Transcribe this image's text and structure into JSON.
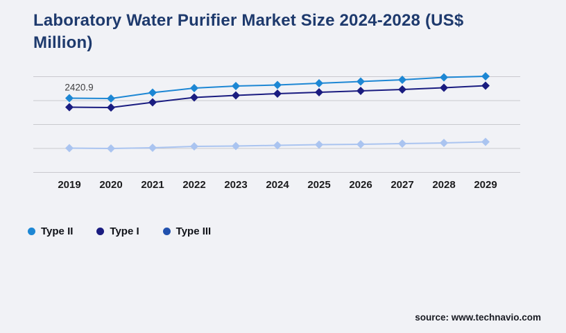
{
  "page": {
    "background_color": "#f1f2f6"
  },
  "footer": {
    "source_text": "source: www.technavio.com"
  },
  "chart_data": {
    "type": "line",
    "title": "Laboratory Water Purifier Market Size 2024-2028 (US$ Million)",
    "title_color": "#1e3a6d",
    "categories": [
      "2019",
      "2020",
      "2021",
      "2022",
      "2023",
      "2024",
      "2025",
      "2026",
      "2027",
      "2028",
      "2029"
    ],
    "series": [
      {
        "name": "Type II",
        "color": "#1d87d4",
        "legend_color": "#1d87d4",
        "values": [
          2420.9,
          2409.6,
          2601.9,
          2749.0,
          2816.9,
          2850.8,
          2907.4,
          2964.0,
          3020.5,
          3099.7,
          3133.6
        ]
      },
      {
        "name": "Type I",
        "color": "#1a1c80",
        "legend_color": "#1a1c80",
        "values": [
          2126.8,
          2115.5,
          2285.2,
          2443.6,
          2511.5,
          2568.0,
          2613.3,
          2658.5,
          2703.8,
          2760.3,
          2828.2
        ]
      },
      {
        "name": "Type III",
        "color": "#aac4f0",
        "legend_color": "#2151ae",
        "values": [
          791.9,
          780.6,
          803.2,
          848.5,
          859.8,
          882.4,
          905.0,
          916.3,
          938.9,
          961.6,
          995.5
        ]
      }
    ],
    "annotations": [
      {
        "series": "Type II",
        "category": "2019",
        "text": "2420.9"
      }
    ],
    "axis": {
      "x_tick_labels_shown": true,
      "y_tick_labels_shown": false,
      "grid": "horizontal",
      "gridline_values": [
        0,
        780.6,
        1561.2,
        2341.9,
        3122.5
      ],
      "ylim": [
        0,
        3470
      ]
    },
    "legend_position": "bottom-left",
    "marker": "diamond",
    "values_note": "y-axis is unlabeled in the image; series values estimated from gridline positions anchored to the visible 2420.9 data label"
  }
}
